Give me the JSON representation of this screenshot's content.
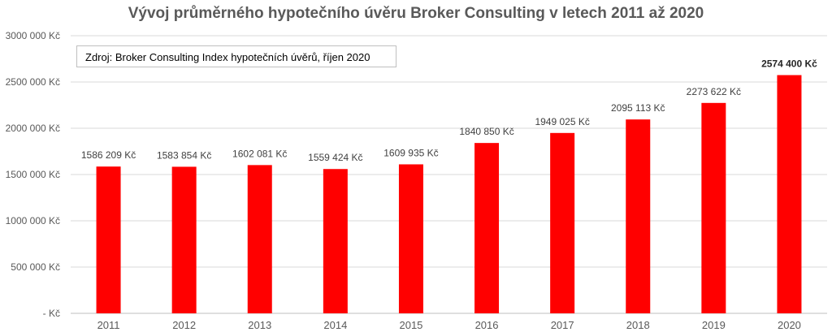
{
  "chart_data": {
    "type": "bar",
    "title": "Vývoj průměrného hypotečního úvěru Broker Consulting v letech 2011 až 2020",
    "source_note": "Zdroj: Broker Consulting Index hypotečních úvěrů, říjen 2020",
    "categories": [
      "2011",
      "2012",
      "2013",
      "2014",
      "2015",
      "2016",
      "2017",
      "2018",
      "2019",
      "2020"
    ],
    "values": [
      1586209,
      1583854,
      1602081,
      1559424,
      1609935,
      1840850,
      1949025,
      2095113,
      2273622,
      2574400
    ],
    "data_labels": [
      "1586 209 Kč",
      "1583 854 Kč",
      "1602 081 Kč",
      "1559 424 Kč",
      "1609 935 Kč",
      "1840 850 Kč",
      "1949 025 Kč",
      "2095 113 Kč",
      "2273 622 Kč",
      "2574 400 Kč"
    ],
    "highlight_index": 9,
    "y_ticks": [
      0,
      500000,
      1000000,
      1500000,
      2000000,
      2500000,
      3000000
    ],
    "y_tick_labels": [
      "- Kč",
      "500 000 Kč",
      "1000 000 Kč",
      "1500 000 Kč",
      "2000 000 Kč",
      "2500 000 Kč",
      "3000 000 Kč"
    ],
    "ylim": [
      0,
      3000000
    ],
    "bar_color": "#ff0000",
    "grid": true,
    "xlabel": "",
    "ylabel": ""
  }
}
